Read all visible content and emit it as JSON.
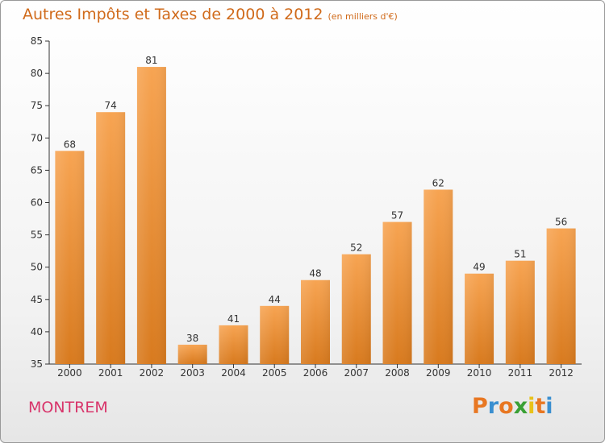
{
  "chart_data": {
    "type": "bar",
    "title": "Autres Impôts et Taxes de 2000 à 2012",
    "subtitle": "(en milliers d'€)",
    "categories": [
      "2000",
      "2001",
      "2002",
      "2003",
      "2004",
      "2005",
      "2006",
      "2007",
      "2008",
      "2009",
      "2010",
      "2011",
      "2012"
    ],
    "values": [
      68,
      74,
      81,
      38,
      41,
      44,
      48,
      52,
      57,
      62,
      49,
      51,
      56
    ],
    "xlabel": "",
    "ylabel": "",
    "ylim": [
      35,
      85
    ],
    "yticks": [
      35,
      40,
      45,
      50,
      55,
      60,
      65,
      70,
      75,
      80,
      85
    ],
    "grid": false,
    "bar_color_top": "#f7a452",
    "bar_color_bottom": "#d87a1e"
  },
  "footer": {
    "place": "MONTREM",
    "logo_letters": [
      "P",
      "r",
      "o",
      "x",
      "i",
      "t",
      "i"
    ],
    "logo_colors": [
      "#e87722",
      "#3a8fd0",
      "#e87722",
      "#3aa035",
      "#e8c21a",
      "#e87722",
      "#3a8fd0"
    ]
  },
  "colors": {
    "title": "#d06a1a",
    "place": "#d8356b",
    "axis": "#333333"
  }
}
